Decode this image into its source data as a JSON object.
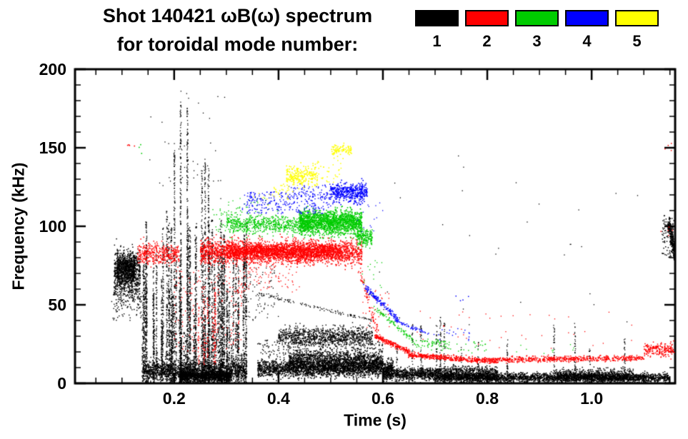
{
  "title": {
    "line1": "Shot 140421 ωB(ω) spectrum",
    "line2": "for toroidal mode number:"
  },
  "chart_data": {
    "type": "scatter",
    "title": "Shot 140421 ωB(ω) spectrum",
    "subtitle": "for toroidal mode number: 1 2 3 4 5",
    "xlabel": "Time (s)",
    "ylabel": "Frequency (kHz)",
    "xlim": [
      0.01,
      1.16
    ],
    "ylim": [
      0,
      200
    ],
    "xticks": [
      {
        "v": 0.2,
        "label": "0.2"
      },
      {
        "v": 0.4,
        "label": "0.4"
      },
      {
        "v": 0.6,
        "label": "0.6"
      },
      {
        "v": 0.8,
        "label": "0.8"
      },
      {
        "v": 1.0,
        "label": "1.0"
      }
    ],
    "yticks": [
      {
        "v": 0,
        "label": "0"
      },
      {
        "v": 50,
        "label": "50"
      },
      {
        "v": 100,
        "label": "100"
      },
      {
        "v": 150,
        "label": "150"
      },
      {
        "v": 200,
        "label": "200"
      }
    ],
    "x_minor_step": 0.05,
    "y_minor_step": 10,
    "frame_color": "#000000",
    "background": "#ffffff",
    "series": [
      {
        "name": "1",
        "color": "#000000",
        "features": [
          {
            "type": "blob",
            "t": [
              0.085,
              0.135
            ],
            "f": [
              48,
              88
            ],
            "n": 700,
            "size": 1.5
          },
          {
            "type": "blob",
            "t": [
              0.09,
              0.125
            ],
            "f": [
              62,
              85
            ],
            "n": 700,
            "size": 1.5
          },
          {
            "type": "dots",
            "t": [
              0.08,
              0.14
            ],
            "f": [
              40,
              58
            ],
            "n": 70,
            "size": 1.4
          },
          {
            "type": "streaks",
            "t": [
              0.135,
              0.34
            ],
            "fbase": 0,
            "ftop": [
              15,
              110
            ],
            "k": 80,
            "m": 110,
            "size": 1.4
          },
          {
            "type": "streaks",
            "t": [
              0.19,
              0.27
            ],
            "fbase": 0,
            "ftop": [
              130,
              188
            ],
            "k": 6,
            "m": 220,
            "size": 1.3
          },
          {
            "type": "blob",
            "t": [
              0.14,
              0.34
            ],
            "f": [
              0,
              16
            ],
            "n": 1600,
            "size": 1.5
          },
          {
            "type": "blob",
            "t": [
              0.21,
              0.31
            ],
            "f": [
              0,
              9
            ],
            "n": 900,
            "size": 1.6
          },
          {
            "type": "blob",
            "t": [
              0.36,
              0.62
            ],
            "f": [
              3,
              16
            ],
            "n": 2200,
            "size": 1.5
          },
          {
            "type": "blob",
            "t": [
              0.42,
              0.6
            ],
            "f": [
              6,
              22
            ],
            "n": 1400,
            "size": 1.5
          },
          {
            "type": "blob",
            "t": [
              0.4,
              0.58
            ],
            "f": [
              22,
              37
            ],
            "n": 1100,
            "size": 1.4
          },
          {
            "type": "dots",
            "t": [
              0.36,
              0.6
            ],
            "f": [
              16,
              28
            ],
            "n": 250,
            "size": 1.4
          },
          {
            "type": "blob",
            "t": [
              0.6,
              0.72
            ],
            "f": [
              1,
              11
            ],
            "n": 900,
            "size": 1.5
          },
          {
            "type": "blob",
            "t": [
              0.7,
              1.15
            ],
            "f": [
              0,
              7
            ],
            "n": 2600,
            "size": 1.5
          },
          {
            "type": "blob",
            "t": [
              0.72,
              0.82
            ],
            "f": [
              0,
              12
            ],
            "n": 700,
            "size": 1.5
          },
          {
            "type": "blob",
            "t": [
              0.93,
              1.08
            ],
            "f": [
              0,
              10
            ],
            "n": 700,
            "size": 1.5
          },
          {
            "type": "streaks",
            "t": [
              0.62,
              1.12
            ],
            "fbase": 0,
            "ftop": [
              18,
              45
            ],
            "k": 14,
            "m": 45,
            "size": 1.3
          },
          {
            "type": "line",
            "p0": [
              1.148,
              102
            ],
            "p1": [
              1.172,
              60
            ],
            "n": 400,
            "jitter": 4,
            "size": 1.6
          },
          {
            "type": "dots",
            "t": [
              1.135,
              1.165
            ],
            "f": [
              80,
              107
            ],
            "n": 120,
            "size": 1.5
          },
          {
            "type": "dots",
            "t": [
              0.15,
              0.3
            ],
            "f": [
              112,
              186
            ],
            "n": 40,
            "size": 1.3
          },
          {
            "type": "dots",
            "t": [
              0.55,
              1.12
            ],
            "f": [
              35,
              150
            ],
            "n": 30,
            "size": 1.3
          },
          {
            "type": "line",
            "p0": [
              0.36,
              57
            ],
            "p1": [
              0.58,
              40
            ],
            "n": 120,
            "jitter": 1.5,
            "size": 1.3
          },
          {
            "type": "dots",
            "t": [
              0.33,
              0.4
            ],
            "f": [
              40,
              75
            ],
            "n": 80,
            "size": 1.3
          }
        ]
      },
      {
        "name": "2",
        "color": "#ff0000",
        "features": [
          {
            "type": "blob",
            "t": [
              0.25,
              0.56
            ],
            "f": [
              74,
              93
            ],
            "n": 2400,
            "size": 1.5
          },
          {
            "type": "blob",
            "t": [
              0.3,
              0.52
            ],
            "f": [
              78,
              90
            ],
            "n": 1400,
            "size": 1.5
          },
          {
            "type": "blob",
            "t": [
              0.13,
              0.21
            ],
            "f": [
              74,
              91
            ],
            "n": 380,
            "size": 1.5
          },
          {
            "type": "dots",
            "t": [
              0.2,
              0.33
            ],
            "f": [
              20,
              72
            ],
            "n": 160,
            "size": 1.4
          },
          {
            "type": "streaks",
            "t": [
              0.21,
              0.31
            ],
            "fbase": 12,
            "ftop": [
              40,
              65
            ],
            "k": 6,
            "m": 40,
            "size": 1.3
          },
          {
            "type": "dots",
            "t": [
              0.11,
              0.125
            ],
            "f": [
              146,
              152
            ],
            "n": 4,
            "size": 1.6
          },
          {
            "type": "dots",
            "t": [
              0.3,
              0.44
            ],
            "f": [
              58,
              73
            ],
            "n": 90,
            "size": 1.3
          },
          {
            "type": "line",
            "p0": [
              0.555,
              72
            ],
            "p1": [
              0.59,
              32
            ],
            "n": 80,
            "jitter": 3,
            "size": 1.4
          },
          {
            "type": "line",
            "p0": [
              0.585,
              30
            ],
            "p1": [
              0.65,
              20
            ],
            "n": 220,
            "jitter": 2,
            "size": 1.5
          },
          {
            "type": "line",
            "p0": [
              0.65,
              18
            ],
            "p1": [
              0.82,
              14
            ],
            "n": 500,
            "jitter": 2.2,
            "size": 1.5
          },
          {
            "type": "line",
            "p0": [
              0.82,
              15
            ],
            "p1": [
              1.1,
              16
            ],
            "n": 550,
            "jitter": 2.2,
            "size": 1.5
          },
          {
            "type": "blob",
            "t": [
              1.1,
              1.165
            ],
            "f": [
              16,
              27
            ],
            "n": 220,
            "size": 1.5
          },
          {
            "type": "dots",
            "t": [
              0.66,
              1.1
            ],
            "f": [
              22,
              46
            ],
            "n": 40,
            "size": 1.3
          },
          {
            "type": "dots",
            "t": [
              1.13,
              1.17
            ],
            "f": [
              90,
              100
            ],
            "n": 6,
            "size": 1.5
          },
          {
            "type": "dots",
            "t": [
              1.14,
              1.16
            ],
            "f": [
              146,
              153
            ],
            "n": 4,
            "size": 1.5
          },
          {
            "type": "dots",
            "t": [
              0.56,
              0.62
            ],
            "f": [
              35,
              60
            ],
            "n": 30,
            "size": 1.3
          }
        ]
      },
      {
        "name": "3",
        "color": "#00cc00",
        "features": [
          {
            "type": "blob",
            "t": [
              0.3,
              0.46
            ],
            "f": [
              94,
              108
            ],
            "n": 600,
            "size": 1.5
          },
          {
            "type": "blob",
            "t": [
              0.44,
              0.56
            ],
            "f": [
              93,
              112
            ],
            "n": 1500,
            "size": 1.6
          },
          {
            "type": "blob",
            "t": [
              0.55,
              0.58
            ],
            "f": [
              86,
              100
            ],
            "n": 180,
            "size": 1.5
          },
          {
            "type": "dots",
            "t": [
              0.27,
              0.33
            ],
            "f": [
              96,
              112
            ],
            "n": 60,
            "size": 1.4
          },
          {
            "type": "dots",
            "t": [
              0.3,
              0.4
            ],
            "f": [
              106,
              118
            ],
            "n": 30,
            "size": 1.3
          },
          {
            "type": "dots",
            "t": [
              0.128,
              0.14
            ],
            "f": [
              146,
              152
            ],
            "n": 3,
            "size": 1.6
          },
          {
            "type": "line",
            "p0": [
              0.585,
              48
            ],
            "p1": [
              0.66,
              27
            ],
            "n": 90,
            "jitter": 2,
            "size": 1.4
          },
          {
            "type": "blob",
            "t": [
              0.66,
              0.73
            ],
            "f": [
              21,
              30
            ],
            "n": 70,
            "size": 1.4
          },
          {
            "type": "dots",
            "t": [
              0.73,
              0.8
            ],
            "f": [
              19,
              27
            ],
            "n": 20,
            "size": 1.4
          },
          {
            "type": "dots",
            "t": [
              0.85,
              0.97
            ],
            "f": [
              19,
              25
            ],
            "n": 10,
            "size": 1.3
          },
          {
            "type": "dots",
            "t": [
              0.56,
              0.6
            ],
            "f": [
              55,
              80
            ],
            "n": 15,
            "size": 1.3
          }
        ]
      },
      {
        "name": "4",
        "color": "#0000ff",
        "features": [
          {
            "type": "dots",
            "t": [
              0.34,
              0.5
            ],
            "f": [
              108,
              122
            ],
            "n": 280,
            "size": 1.4
          },
          {
            "type": "blob",
            "t": [
              0.5,
              0.57
            ],
            "f": [
              114,
              129
            ],
            "n": 420,
            "size": 1.6
          },
          {
            "type": "dots",
            "t": [
              0.33,
              0.37
            ],
            "f": [
              110,
              120
            ],
            "n": 25,
            "size": 1.4
          },
          {
            "type": "line",
            "p0": [
              0.565,
              62
            ],
            "p1": [
              0.63,
              40
            ],
            "n": 140,
            "jitter": 2,
            "size": 1.5
          },
          {
            "type": "line",
            "p0": [
              0.63,
              39
            ],
            "p1": [
              0.69,
              31
            ],
            "n": 50,
            "jitter": 1.8,
            "size": 1.4
          },
          {
            "type": "dots",
            "t": [
              0.69,
              0.77
            ],
            "f": [
              27,
              36
            ],
            "n": 18,
            "size": 1.4
          },
          {
            "type": "dots",
            "t": [
              0.74,
              0.78
            ],
            "f": [
              52,
              58
            ],
            "n": 4,
            "size": 1.5
          },
          {
            "type": "dots",
            "t": [
              0.42,
              0.5
            ],
            "f": [
              118,
              127
            ],
            "n": 60,
            "size": 1.4
          },
          {
            "type": "dots",
            "t": [
              0.55,
              0.6
            ],
            "f": [
              95,
              115
            ],
            "n": 15,
            "size": 1.3
          }
        ]
      },
      {
        "name": "5",
        "color": "#ffff00",
        "features": [
          {
            "type": "blob",
            "t": [
              0.415,
              0.475
            ],
            "f": [
              124,
              140
            ],
            "n": 240,
            "size": 1.6
          },
          {
            "type": "blob",
            "t": [
              0.5,
              0.54
            ],
            "f": [
              144,
              153
            ],
            "n": 90,
            "size": 1.6
          },
          {
            "type": "dots",
            "t": [
              0.39,
              0.42
            ],
            "f": [
              117,
              127
            ],
            "n": 25,
            "size": 1.5
          },
          {
            "type": "dots",
            "t": [
              0.475,
              0.52
            ],
            "f": [
              128,
              142
            ],
            "n": 30,
            "size": 1.5
          },
          {
            "type": "dots",
            "t": [
              0.35,
              0.39
            ],
            "f": [
              113,
              121
            ],
            "n": 8,
            "size": 1.4
          }
        ]
      }
    ]
  }
}
